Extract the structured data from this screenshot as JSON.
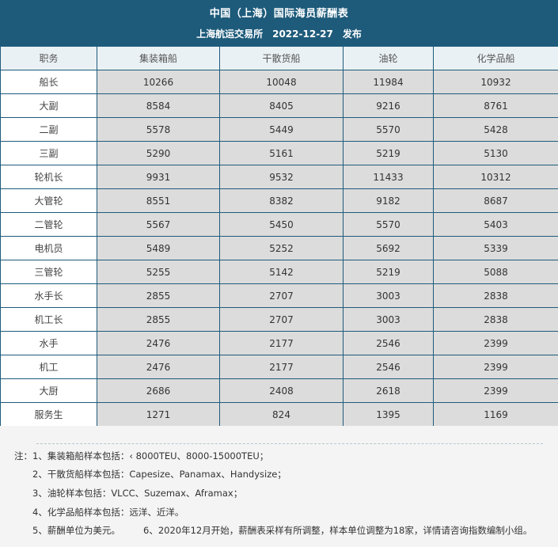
{
  "header": {
    "title": "中国（上海）国际海员薪酬表",
    "subtitle": "上海航运交易所　2022-12-27　发布"
  },
  "table": {
    "columns": [
      "职务",
      "集装箱船",
      "干散货船",
      "油轮",
      "化学品船"
    ],
    "rows": [
      {
        "role": "船长",
        "values": [
          "10266",
          "10048",
          "11984",
          "10932"
        ]
      },
      {
        "role": "大副",
        "values": [
          "8584",
          "8405",
          "9216",
          "8761"
        ]
      },
      {
        "role": "二副",
        "values": [
          "5578",
          "5449",
          "5570",
          "5428"
        ]
      },
      {
        "role": "三副",
        "values": [
          "5290",
          "5161",
          "5219",
          "5130"
        ]
      },
      {
        "role": "轮机长",
        "values": [
          "9931",
          "9532",
          "11433",
          "10312"
        ]
      },
      {
        "role": "大管轮",
        "values": [
          "8551",
          "8382",
          "9182",
          "8687"
        ]
      },
      {
        "role": "二管轮",
        "values": [
          "5567",
          "5450",
          "5570",
          "5403"
        ]
      },
      {
        "role": "电机员",
        "values": [
          "5489",
          "5252",
          "5692",
          "5339"
        ]
      },
      {
        "role": "三管轮",
        "values": [
          "5255",
          "5142",
          "5219",
          "5088"
        ]
      },
      {
        "role": "水手长",
        "values": [
          "2855",
          "2707",
          "3003",
          "2838"
        ]
      },
      {
        "role": "机工长",
        "values": [
          "2855",
          "2707",
          "3003",
          "2838"
        ]
      },
      {
        "role": "水手",
        "values": [
          "2476",
          "2177",
          "2546",
          "2399"
        ]
      },
      {
        "role": "机工",
        "values": [
          "2476",
          "2177",
          "2546",
          "2399"
        ]
      },
      {
        "role": "大厨",
        "values": [
          "2686",
          "2408",
          "2618",
          "2399"
        ]
      },
      {
        "role": "服务生",
        "values": [
          "1271",
          "824",
          "1395",
          "1169"
        ]
      }
    ]
  },
  "notes": {
    "line1": "注：1、集装箱船样本包括：‹ 8000TEU、8000-15000TEU；",
    "line2": "2、干散货船样本包括：Capesize、Panamax、Handysize；",
    "line3": "3、油轮样本包括：VLCC、Suzemax、Aframax；",
    "line4": "4、化学品船样本包括：远洋、近洋。",
    "line5a": "5、薪酬单位为美元。",
    "line5b": "6、2020年12月开始，薪酬表采样有所调整，样本单位调整为18家，详情请咨询指数编制小组。"
  },
  "colors": {
    "header_bg": "#1e5b7b",
    "border": "#1e5b7b",
    "value_cell_bg": "#dcdcdc",
    "notes_bg": "#f4f4f4"
  }
}
